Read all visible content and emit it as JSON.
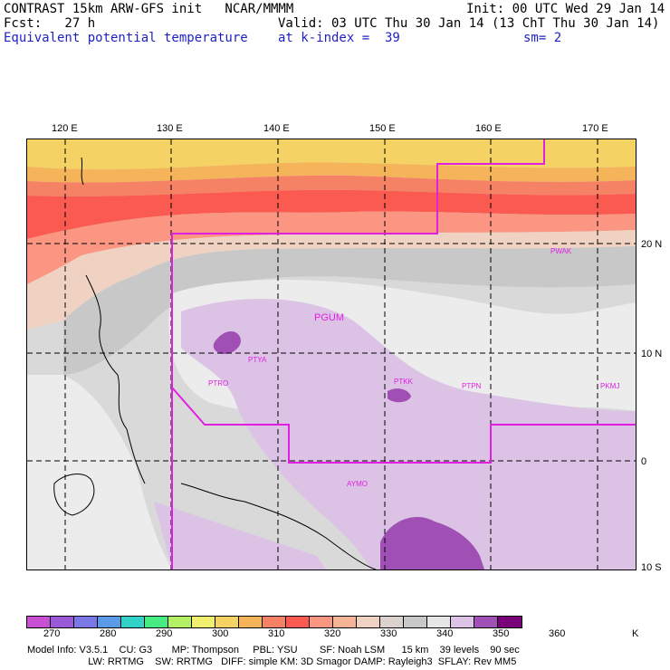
{
  "header": {
    "line1_left": "CONTRAST 15km ARW-GFS init   NCAR/MMMM",
    "line1_right": "Init: 00 UTC Wed 29 Jan 14",
    "line2_left": "Fcst:   27 h",
    "line2_right": "Valid: 03 UTC Thu 30 Jan 14 (13 ChT Thu 30 Jan 14)",
    "line3_left": "Equivalent potential temperature",
    "line3_mid": "at k-index =  39",
    "line3_right": "sm= 2"
  },
  "map": {
    "longitude_labels": [
      "120 E",
      "130 E",
      "140 E",
      "150 E",
      "160 E",
      "170 E"
    ],
    "latitude_labels": [
      "20 N",
      "10 N",
      "0",
      "10 S"
    ],
    "stations": [
      "PGUM",
      "PTYA",
      "PTRO",
      "PTKK",
      "PTPN",
      "PKMJ",
      "PWAK",
      "AYMO"
    ],
    "colors": {
      "boundary": "#e020e0",
      "station_label": "#e020e0",
      "grid": "#000000"
    }
  },
  "colorbar": {
    "tick_labels": [
      "270",
      "280",
      "290",
      "300",
      "310",
      "320",
      "330",
      "340",
      "350",
      "360"
    ],
    "unit": "K",
    "colors": [
      "#c850d2",
      "#9a5ad8",
      "#7a78e6",
      "#5a9ae6",
      "#32d2c8",
      "#46ec82",
      "#b4f064",
      "#f0f06e",
      "#f5d264",
      "#f5b45a",
      "#f58264",
      "#fa5a50",
      "#fa9682",
      "#f5b496",
      "#f0d2c3",
      "#dcd2cd",
      "#c8c8c8",
      "#e6e6e6",
      "#dcc3e6",
      "#a050b4",
      "#780078"
    ]
  },
  "footer": {
    "line1": "Model Info: V3.5.1    CU: G3       MP: Thompson     PBL: YSU        SF: Noah LSM      15 km    39 levels    90 sec",
    "line2": "                      LW: RRTMG    SW: RRTMG   DIFF: simple KM: 3D Smagor DAMP: Rayleigh3  SFLAY: Rev MM5"
  }
}
